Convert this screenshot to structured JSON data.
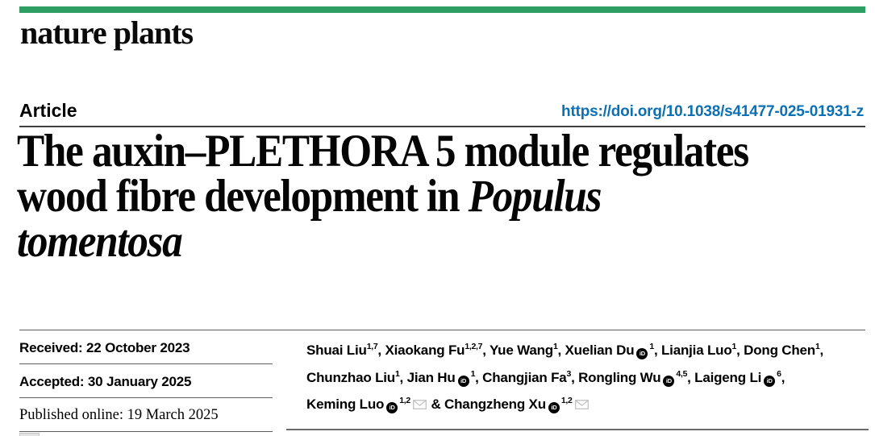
{
  "brand": {
    "journal_name": "nature plants",
    "accent_green": "#2f9e62",
    "link_blue": "#0b71b4"
  },
  "header": {
    "article_type": "Article",
    "doi_url": "https://doi.org/10.1038/s41477-025-01931-z"
  },
  "title": {
    "line1": "The auxin–PLETHORA 5 module regulates",
    "line2_plain": "wood fibre development in ",
    "line2_italic": "Populus",
    "line3_italic": "tomentosa"
  },
  "history": [
    {
      "label": "Received:",
      "date": "22 October 2023",
      "serif": false
    },
    {
      "label": "Accepted:",
      "date": "30 January 2025",
      "serif": false
    },
    {
      "label": "Published online:",
      "date": "19 March 2025",
      "serif": true
    }
  ],
  "authors": {
    "orcid_icon_glyph": "iD",
    "lines": [
      [
        {
          "name": "Shuai Liu",
          "sup": "1,7",
          "orcid": false,
          "email": false,
          "sep": ", "
        },
        {
          "name": "Xiaokang Fu",
          "sup": "1,2,7",
          "orcid": false,
          "email": false,
          "sep": ", "
        },
        {
          "name": "Yue Wang",
          "sup": "1",
          "orcid": false,
          "email": false,
          "sep": ", "
        },
        {
          "name": "Xuelian Du",
          "sup": "1",
          "orcid": true,
          "email": false,
          "sep": ", "
        },
        {
          "name": "Lianjia Luo",
          "sup": "1",
          "orcid": false,
          "email": false,
          "sep": ", "
        },
        {
          "name": "Dong Chen",
          "sup": "1",
          "orcid": false,
          "email": false,
          "sep": ","
        }
      ],
      [
        {
          "name": "Chunzhao Liu",
          "sup": "1",
          "orcid": false,
          "email": false,
          "sep": ", "
        },
        {
          "name": "Jian Hu",
          "sup": "1",
          "orcid": true,
          "email": false,
          "sep": ", "
        },
        {
          "name": "Changjian Fa",
          "sup": "3",
          "orcid": false,
          "email": false,
          "sep": ", "
        },
        {
          "name": "Rongling Wu",
          "sup": "4,5",
          "orcid": true,
          "email": false,
          "sep": ", "
        },
        {
          "name": "Laigeng Li",
          "sup": "6",
          "orcid": true,
          "email": false,
          "sep": ","
        }
      ],
      [
        {
          "name": "Keming Luo",
          "sup": "1,2",
          "orcid": true,
          "email": true,
          "sep": " & "
        },
        {
          "name": "Changzheng Xu",
          "sup": "1,2",
          "orcid": true,
          "email": true,
          "sep": ""
        }
      ]
    ]
  }
}
